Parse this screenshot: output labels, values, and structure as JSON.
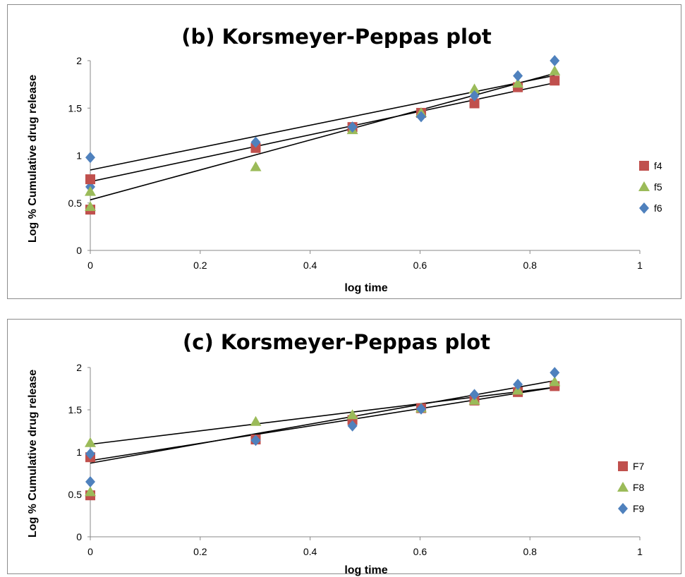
{
  "chart_data": [
    {
      "type": "scatter",
      "title": "(b) Korsmeyer-Peppas plot",
      "xlabel": "log time",
      "ylabel": "Log % Cumulative drug release",
      "xlim": [
        0,
        1
      ],
      "ylim": [
        0,
        2
      ],
      "xticks": [
        "0",
        "0.2",
        "0.4",
        "0.6",
        "0.8",
        "1"
      ],
      "yticks": [
        "0",
        "0.5",
        "1",
        "1.5",
        "2"
      ],
      "legend_position": "right",
      "grid": false,
      "trendlines": true,
      "series": [
        {
          "name": "f4",
          "marker": "square",
          "color": "#C0504D",
          "x": [
            0,
            0.301,
            0.477,
            0.602,
            0.699,
            0.778,
            0.845
          ],
          "y": [
            0.75,
            1.08,
            1.3,
            1.45,
            1.55,
            1.72,
            1.79
          ]
        },
        {
          "name": "f5",
          "marker": "triangle",
          "color": "#9BBB59",
          "x": [
            0,
            0.301,
            0.477,
            0.602,
            0.699,
            0.778,
            0.845
          ],
          "y": [
            0.62,
            0.88,
            1.27,
            1.45,
            1.7,
            1.76,
            1.89
          ]
        },
        {
          "name": "f6",
          "marker": "diamond",
          "color": "#4F81BD",
          "x": [
            0,
            0.301,
            0.477,
            0.602,
            0.699,
            0.778,
            0.845
          ],
          "y": [
            0.98,
            1.14,
            1.3,
            1.41,
            1.63,
            1.84,
            2.0
          ]
        }
      ],
      "extra_points": [
        {
          "series": "f4",
          "x": 0,
          "y": 0.43
        },
        {
          "series": "f5",
          "x": 0,
          "y": 0.46
        },
        {
          "series": "f6",
          "x": 0,
          "y": 0.67
        }
      ]
    },
    {
      "type": "scatter",
      "title": "(c) Korsmeyer-Peppas plot",
      "xlabel": "log time",
      "ylabel": "Log % Cumulative drug release",
      "xlim": [
        0,
        1
      ],
      "ylim": [
        0,
        2
      ],
      "xticks": [
        "0",
        "0.2",
        "0.4",
        "0.6",
        "0.8",
        "1"
      ],
      "yticks": [
        "0",
        "0.5",
        "1",
        "1.5",
        "2"
      ],
      "legend_position": "right",
      "grid": false,
      "trendlines": true,
      "series": [
        {
          "name": "F7",
          "marker": "square",
          "color": "#C0504D",
          "x": [
            0,
            0.301,
            0.477,
            0.602,
            0.699,
            0.778,
            0.845
          ],
          "y": [
            0.94,
            1.15,
            1.38,
            1.52,
            1.61,
            1.71,
            1.78
          ]
        },
        {
          "name": "F8",
          "marker": "triangle",
          "color": "#9BBB59",
          "x": [
            0,
            0.301,
            0.477,
            0.602,
            0.699,
            0.778,
            0.845
          ],
          "y": [
            1.11,
            1.36,
            1.44,
            1.52,
            1.61,
            1.73,
            1.83
          ]
        },
        {
          "name": "F9",
          "marker": "diamond",
          "color": "#4F81BD",
          "x": [
            0,
            0.301,
            0.477,
            0.602,
            0.699,
            0.778,
            0.845
          ],
          "y": [
            0.98,
            1.14,
            1.31,
            1.51,
            1.68,
            1.8,
            1.94
          ]
        }
      ],
      "extra_points": [
        {
          "series": "F7",
          "x": 0,
          "y": 0.49
        },
        {
          "series": "F8",
          "x": 0,
          "y": 0.53
        },
        {
          "series": "F9",
          "x": 0,
          "y": 0.65
        }
      ]
    }
  ]
}
